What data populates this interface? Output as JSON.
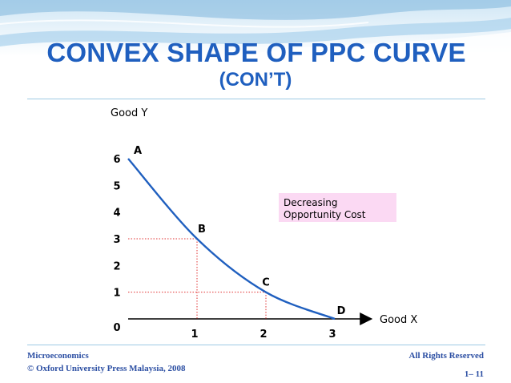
{
  "slide": {
    "title": "CONVEX SHAPE OF PPC CURVE",
    "subtitle": "(CON’T)",
    "footer_left_1": "Microeconomics",
    "footer_left_2": "© Oxford University Press Malaysia, 2008",
    "footer_right_1": "All Rights Reserved",
    "footer_right_2": "1– 11",
    "colors": {
      "title": "#1f5fbf",
      "curve": "#1f5fbf",
      "guide": "#e03030",
      "note_bg": "#fbd9f3"
    }
  },
  "chart_data": {
    "type": "line",
    "xlabel": "Good X",
    "ylabel": "Good Y",
    "x_ticks": [
      "0",
      "1",
      "2",
      "3"
    ],
    "y_ticks": [
      "1",
      "2",
      "3",
      "4",
      "5",
      "6"
    ],
    "xlim": [
      0,
      3
    ],
    "ylim": [
      0,
      6
    ],
    "points": [
      {
        "label": "A",
        "x": 0,
        "y": 6
      },
      {
        "label": "B",
        "x": 1,
        "y": 3
      },
      {
        "label": "C",
        "x": 2,
        "y": 1
      },
      {
        "label": "D",
        "x": 3,
        "y": 0
      }
    ],
    "annotation": [
      "Decreasing",
      "Opportunity Cost"
    ]
  }
}
